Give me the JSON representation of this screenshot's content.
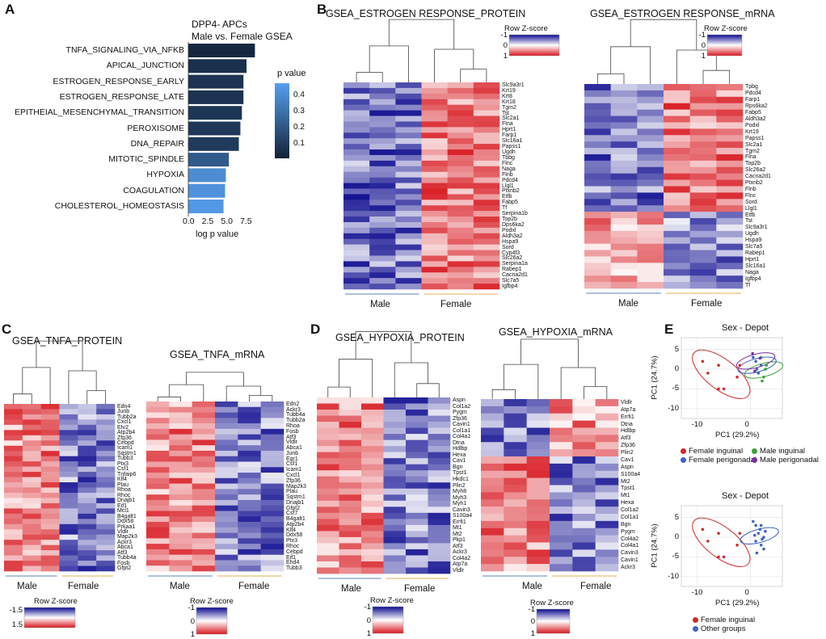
{
  "panels": {
    "A": "A",
    "B": "B",
    "C": "C",
    "D": "D",
    "E": "E"
  },
  "colors": {
    "high": "#d7181f",
    "mid": "#ffffff",
    "low": "#0c0a8e",
    "bar_dark": "#132238",
    "bar_light": "#56a0f0",
    "male_line": "#7d9cc4",
    "female_line": "#e7c178"
  },
  "chart_data": [
    {
      "type": "bar",
      "orientation": "horizontal",
      "title": "DPP4- APCs",
      "subtitle": "Male vs. Female GSEA",
      "categories": [
        "TNFA_SIGNALING_VIA_NFKB",
        "APICAL_JUNCTION",
        "ESTROGEN_RESPONSE_EARLY",
        "ESTROGEN_RESPONSE_LATE",
        "EPITHEIAL_MESENCHYMAL_TRANSITION",
        "PEROXISOME",
        "DNA_REPAIR",
        "MITOTIC_SPINDLE",
        "HYPOXIA",
        "COAGULATION",
        "CHOLESTEROL_HOMEOSTASIS"
      ],
      "values": [
        8.7,
        7.6,
        7.2,
        7.2,
        7.0,
        6.8,
        6.6,
        5.3,
        4.9,
        4.8,
        4.6
      ],
      "p_values": [
        0.02,
        0.05,
        0.06,
        0.06,
        0.07,
        0.08,
        0.09,
        0.2,
        0.38,
        0.4,
        0.42
      ],
      "xlabel": "log p value",
      "xticks": [
        "0.0",
        "2.5",
        "5.0",
        "7.5"
      ],
      "xlim": [
        0,
        9.5
      ],
      "legend_title": "p value",
      "legend_ticks": [
        "0.4",
        "0.3",
        "0.2",
        "0.1"
      ]
    },
    {
      "type": "heatmap",
      "title": "GSEA_ESTROGEN RESPONSE_PROTEIN",
      "groups": [
        "Male",
        "Female"
      ],
      "group_sizes": [
        3,
        3
      ],
      "genes": [
        "Slc9a3r1",
        "Krt19",
        "Krt8",
        "Krt18",
        "Tgm2",
        "Tst",
        "Slc2a1",
        "Flna",
        "Hprt1",
        "Farp1",
        "Slc16a1",
        "Papss1",
        "Ugdh",
        "Tbbg",
        "Flnc",
        "Naga",
        "Flnb",
        "Pdcd4",
        "Llgl1",
        "Ptxnb2",
        "Etfb",
        "Fabp5",
        "Tf",
        "Serpina1b",
        "Top2b",
        "Dps6ka2",
        "Podxl",
        "Aldh3a2",
        "Hspa9",
        "Sord",
        "Cyp4f3",
        "Slc26a2",
        "Serpina1a",
        "Rabep1",
        "Cacna2d1",
        "Slc7a5",
        "Igfbp4"
      ],
      "legend_title": "Row Z-score",
      "legend_ticks": [
        "-1",
        "0",
        "1"
      ],
      "seed": 11,
      "pattern": "female_high"
    },
    {
      "type": "heatmap",
      "title": "GSEA_ESTROGEN RESPONSE_mRNA",
      "groups": [
        "Male",
        "Female"
      ],
      "group_sizes": [
        3,
        3
      ],
      "genes": [
        "Tpbg",
        "Pdcd4",
        "Farp1",
        "Rps6ka2",
        "Fabp5",
        "Aldh3a2",
        "Podxl",
        "Krt19",
        "Papss1",
        "Slc2a1",
        "Tgm2",
        "Flna",
        "Top2b",
        "Slc26a2",
        "Cacna2d1",
        "Ptxnb2",
        "Flnb",
        "Flnc",
        "Sord",
        "Llgl1",
        "Etfb",
        "Tst",
        "Slc9a3r1",
        "Ugdh",
        "Hspa9",
        "Slc7a5",
        "Rabep1",
        "Hprt1",
        "Slc16a1",
        "Naga",
        "Igfbp4",
        "Tf"
      ],
      "legend_title": "Row Z-score",
      "legend_ticks": [
        "-1",
        "0",
        "1"
      ],
      "seed": 23,
      "pattern": "female_high_then_male"
    },
    {
      "type": "heatmap",
      "title": "GSEA_TNFA_PROTEIN",
      "groups": [
        "Male",
        "Female"
      ],
      "group_sizes": [
        3,
        3
      ],
      "genes": [
        "Edn4",
        "Junb",
        "Tubb2a",
        "Cxcl1",
        "Etv2",
        "Atp2b4",
        "Zfp36",
        "Cebpd",
        "Icam1",
        "Sqstm1",
        "Tubb3",
        "Ptx3",
        "Csf1",
        "Tnfaip6",
        "Klf4",
        "Plau",
        "Rhoa",
        "Rhoc",
        "Dnajb1",
        "Eif1",
        "Mcl1",
        "B4galt1",
        "Ddx58",
        "Prkaa1",
        "Vldlr",
        "Map2k3",
        "Ackr3",
        "Abca1",
        "Atf3",
        "Tubb4a",
        "Fosb",
        "Gfpt2"
      ],
      "legend_title": "Row Z-score",
      "legend_ticks": [
        "-1.5",
        "1.5"
      ],
      "seed": 37,
      "pattern": "male_high"
    },
    {
      "type": "heatmap",
      "title": "GSEA_TNFA_mRNA",
      "groups": [
        "Male",
        "Female"
      ],
      "group_sizes": [
        3,
        3
      ],
      "genes": [
        "Edn2",
        "Ackr3",
        "Tubb4a",
        "Tubb2a",
        "Rhoa",
        "Fosb",
        "Atf3",
        "Vldlr",
        "Abca1",
        "Junb",
        "Egr1",
        "Csf1",
        "Icam1",
        "Cxcl1",
        "Zfp36",
        "Map2k3",
        "Plau",
        "Sqstm1",
        "Dnajb1",
        "Gfpt2",
        "Csf7",
        "B4galt1",
        "Atp2b4",
        "Klf4",
        "Ddx58",
        "Ptx3",
        "Rhoc",
        "Cebpd",
        "Eif1",
        "Ehd4",
        "Tubb3"
      ],
      "legend_title": "Row Z-score",
      "legend_ticks": [
        "-1",
        "0",
        "1"
      ],
      "seed": 53,
      "pattern": "male_high"
    },
    {
      "type": "heatmap",
      "title": "GSEA_HYPOXIA_PROTEIN",
      "groups": [
        "Male",
        "Female"
      ],
      "group_sizes": [
        3,
        3
      ],
      "genes": [
        "Aspn",
        "Col1a2",
        "Pygm",
        "Zfp36",
        "Cavin1",
        "Col1a1",
        "Col4a1",
        "Dtna",
        "Hdlbp",
        "Hexa",
        "Cav1",
        "Bgn",
        "Tpst1",
        "Hkdc1",
        "Plin2",
        "Myh8",
        "Myh3",
        "Myh1",
        "Cavin3",
        "S100a4",
        "Errfi1",
        "Mt1",
        "Mt2",
        "Pkp1",
        "Atf3",
        "Ackr3",
        "Col4a2",
        "Atp7a",
        "Vldlr"
      ],
      "legend_title": "Row Z-score",
      "legend_ticks": [
        "-1",
        "0",
        "1"
      ],
      "seed": 71,
      "pattern": "male_high"
    },
    {
      "type": "heatmap",
      "title": "GSEA_HYPOXIA_mRNA",
      "groups": [
        "Male",
        "Female"
      ],
      "group_sizes": [
        3,
        3
      ],
      "genes": [
        "Vldlr",
        "Atp7a",
        "Errfi1",
        "Dtna",
        "Hdlbp",
        "Atf3",
        "Zfp36",
        "Plin2",
        "Cav1",
        "Aspn",
        "S100a4",
        "Mt2",
        "Tpst1",
        "Mt1",
        "Hexa",
        "Col1a2",
        "Col1a1",
        "Bgn",
        "Pygm",
        "Col4a2",
        "Col4a1",
        "Cavin3",
        "Cavin1",
        "Ackr3"
      ],
      "legend_title": "Row Z-score",
      "legend_ticks": [
        "-1",
        "0",
        "1"
      ],
      "seed": 89,
      "pattern": "female_top_male_bottom"
    },
    {
      "type": "scatter",
      "title": "Sex - Depot",
      "xlabel": "PC1 (29.2%)",
      "ylabel": "PC1 (24.7%)",
      "xlim": [
        -13,
        6
      ],
      "ylim": [
        -12.5,
        8
      ],
      "xticks": [
        -10,
        0
      ],
      "yticks": [
        5,
        0,
        -5,
        -10
      ],
      "series": [
        {
          "name": "Female inguinal",
          "color": "#d12a2a",
          "points": [
            [
              -9,
              2
            ],
            [
              -8,
              -1
            ],
            [
              -6,
              1
            ],
            [
              -6,
              -5
            ],
            [
              -5,
              -5
            ],
            [
              -2.5,
              -2
            ],
            [
              -2,
              1
            ]
          ]
        },
        {
          "name": "Male inguinal",
          "color": "#3aa33a",
          "points": [
            [
              2,
              3
            ],
            [
              2.8,
              0
            ],
            [
              2.5,
              -2
            ],
            [
              2.2,
              -3
            ],
            [
              3,
              1
            ]
          ]
        },
        {
          "name": "Female perigonadal",
          "color": "#3d63c8",
          "points": [
            [
              0.5,
              3
            ],
            [
              1,
              2
            ],
            [
              1.5,
              -1
            ],
            [
              2,
              1
            ],
            [
              1.2,
              0
            ]
          ]
        },
        {
          "name": "Male perigonadal",
          "color": "#7a2fa3",
          "points": [
            [
              0.4,
              4
            ],
            [
              1.8,
              2.8
            ],
            [
              0.8,
              -0.5
            ]
          ]
        }
      ],
      "legend": [
        "Female inguinal",
        "Male inguinal",
        "Female perigonadal",
        "Male perigonadal"
      ]
    },
    {
      "type": "scatter",
      "title": "Sex - Depot",
      "xlabel": "PC1 (29.2%)",
      "ylabel": "PC1 (24.7%)",
      "xlim": [
        -13,
        6
      ],
      "ylim": [
        -12.5,
        8
      ],
      "xticks": [
        -10,
        0
      ],
      "yticks": [
        5,
        0,
        -5,
        -10
      ],
      "series": [
        {
          "name": "Female inguinal",
          "color": "#d12a2a",
          "points": [
            [
              -9,
              2
            ],
            [
              -8,
              -1
            ],
            [
              -6,
              1
            ],
            [
              -6,
              -5
            ],
            [
              -5,
              -5
            ],
            [
              -2.5,
              -2
            ],
            [
              -2,
              1
            ]
          ]
        },
        {
          "name": "Other groups",
          "color": "#3d63c8",
          "points": [
            [
              0.5,
              4
            ],
            [
              1,
              3
            ],
            [
              2,
              3
            ],
            [
              1.5,
              1
            ],
            [
              2.5,
              0
            ],
            [
              1,
              -1
            ],
            [
              2,
              -2
            ],
            [
              2.5,
              -3
            ],
            [
              1.2,
              -4
            ],
            [
              2.8,
              1.5
            ],
            [
              0.8,
              0.5
            ],
            [
              2.2,
              -0.5
            ],
            [
              1.8,
              2
            ]
          ]
        }
      ],
      "legend": [
        "Female inguinal",
        "Other groups"
      ]
    }
  ]
}
